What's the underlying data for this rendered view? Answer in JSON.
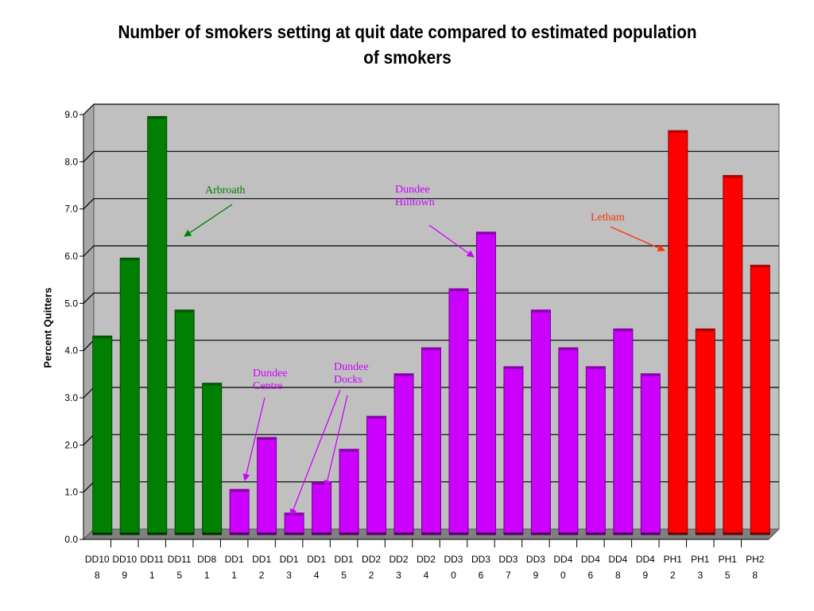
{
  "chart_data": {
    "type": "bar",
    "title_lines": [
      "Number of smokers setting at quit date compared to estimated population",
      "of smokers"
    ],
    "xlabel": "",
    "ylabel": "Percent Quitters",
    "ylim": [
      0,
      9
    ],
    "yticks": [
      "0.0",
      "1.0",
      "2.0",
      "3.0",
      "4.0",
      "5.0",
      "6.0",
      "7.0",
      "8.0",
      "9.0"
    ],
    "grid": true,
    "categories": [
      [
        "DD10",
        "8"
      ],
      [
        "DD10",
        "9"
      ],
      [
        "DD11",
        "1"
      ],
      [
        "DD11",
        "5"
      ],
      [
        "DD8",
        "1"
      ],
      [
        "DD1",
        "1"
      ],
      [
        "DD1",
        "2"
      ],
      [
        "DD1",
        "3"
      ],
      [
        "DD1",
        "4"
      ],
      [
        "DD1",
        "5"
      ],
      [
        "DD2",
        "2"
      ],
      [
        "DD2",
        "3"
      ],
      [
        "DD2",
        "4"
      ],
      [
        "DD3",
        "0"
      ],
      [
        "DD3",
        "6"
      ],
      [
        "DD3",
        "7"
      ],
      [
        "DD3",
        "9"
      ],
      [
        "DD4",
        "0"
      ],
      [
        "DD4",
        "6"
      ],
      [
        "DD4",
        "8"
      ],
      [
        "DD4",
        "9"
      ],
      [
        "PH1",
        "2"
      ],
      [
        "PH1",
        "3"
      ],
      [
        "PH1",
        "5"
      ],
      [
        "PH2",
        "8"
      ]
    ],
    "values": [
      4.2,
      5.85,
      8.85,
      4.75,
      3.2,
      0.95,
      2.05,
      0.45,
      1.1,
      1.8,
      2.5,
      3.4,
      3.95,
      5.2,
      6.4,
      3.55,
      4.75,
      3.95,
      3.55,
      4.35,
      3.4,
      8.55,
      4.35,
      7.6,
      5.7
    ],
    "bar_colors": [
      "#008000",
      "#008000",
      "#008000",
      "#008000",
      "#008000",
      "#cc00ff",
      "#cc00ff",
      "#cc00ff",
      "#cc00ff",
      "#cc00ff",
      "#cc00ff",
      "#cc00ff",
      "#cc00ff",
      "#cc00ff",
      "#cc00ff",
      "#cc00ff",
      "#cc00ff",
      "#cc00ff",
      "#cc00ff",
      "#cc00ff",
      "#cc00ff",
      "#ff0000",
      "#ff0000",
      "#ff0000",
      "#ff0000"
    ],
    "plot_background": "#c0c0c0",
    "annotations": [
      {
        "lines": [
          "Arbroath"
        ],
        "color": "#008000"
      },
      {
        "lines": [
          "Dundee",
          "Hilltown"
        ],
        "color": "#cc00ff"
      },
      {
        "lines": [
          "Letham"
        ],
        "color": "#ff3300"
      },
      {
        "lines": [
          "Dundee",
          "Centre"
        ],
        "color": "#cc00ff"
      },
      {
        "lines": [
          "Dundee",
          "Docks"
        ],
        "color": "#cc00ff"
      }
    ]
  }
}
